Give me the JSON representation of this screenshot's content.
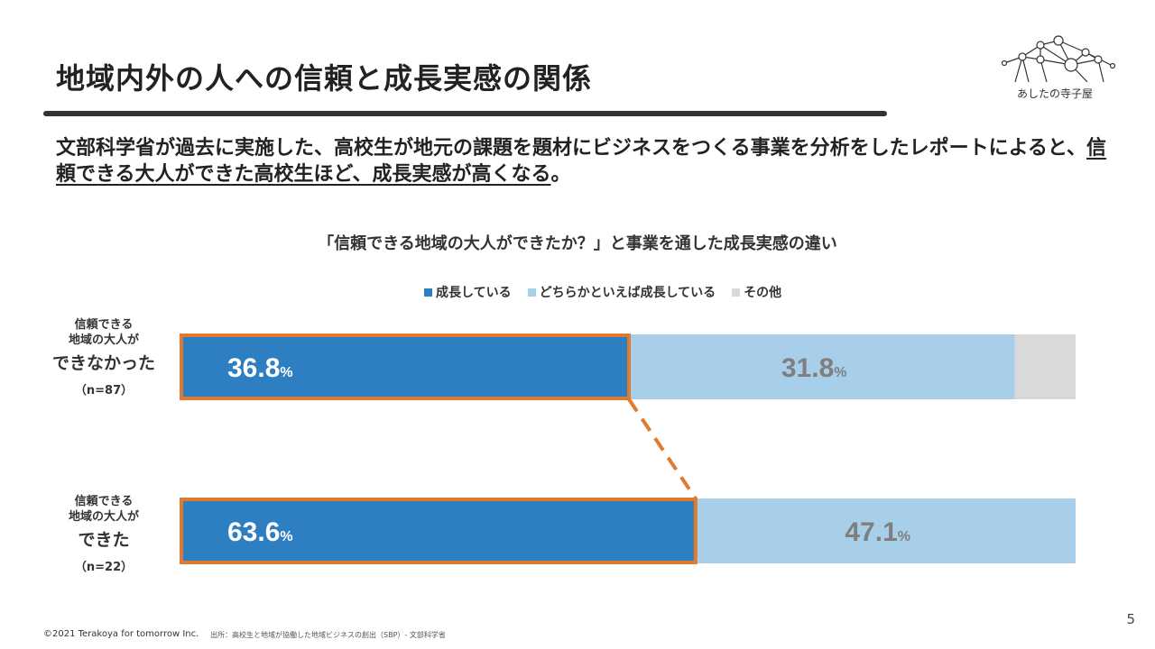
{
  "slide": {
    "title": "地域内外の人への信頼と成長実感の関係",
    "lead_part1": "文部科学省が過去に実施した、高校生が地元の課題を題材にビジネスをつくる事業を分析をしたレポートによると、",
    "lead_underlined": "信頼できる大人ができた高校生ほど、成長実感が高くなる",
    "lead_end": "。",
    "logo_text": "あしたの寺子屋",
    "footer_copyright": "©2021 Terakoya for tomorrow Inc.",
    "footer_source": "出所：高校生と地域が協働した地域ビジネスの創出（SBP）- 文部科学省",
    "page_number": "5"
  },
  "rows": [
    {
      "l1": "信頼できる",
      "l2": "地域の大人が",
      "l3": "できなかった",
      "l4": "（n=87）"
    },
    {
      "l1": "信頼できる",
      "l2": "地域の大人が",
      "l3": "できた",
      "l4": "（n=22）"
    }
  ],
  "colors": {
    "series1": "#2e7fc1",
    "series2": "#a8cfea",
    "series3": "#d9d9d9",
    "highlight": "#e07a2e"
  },
  "chart_data": {
    "type": "bar",
    "orientation": "horizontal-stacked",
    "title": "「信頼できる地域の大人ができたか？」と事業を通した成長実感の違い",
    "categories": [
      "信頼できる地域の大人ができなかった（n=87）",
      "信頼できる地域の大人ができた（n=22）"
    ],
    "series": [
      {
        "name": "成長している",
        "values": [
          36.8,
          63.6
        ],
        "labels": [
          "36.8",
          "63.6"
        ]
      },
      {
        "name": "どちらかといえば成長している",
        "values": [
          31.8,
          47.1
        ],
        "labels": [
          "31.8",
          "47.1"
        ]
      },
      {
        "name": "その他",
        "values": [
          5.0,
          0
        ],
        "labels": [
          "",
          ""
        ]
      }
    ],
    "unit": "%",
    "legend_position": "top",
    "highlight_series": "成長している"
  }
}
